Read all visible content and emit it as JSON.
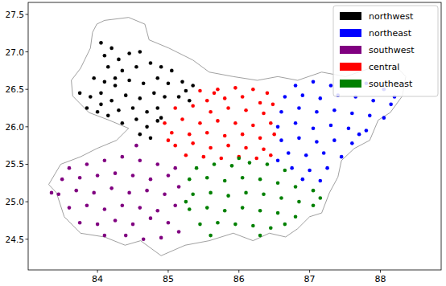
{
  "chart_data": {
    "type": "scatter",
    "xlim": [
      83.02,
      88.86
    ],
    "ylim": [
      24.09,
      27.66
    ],
    "xticks": [
      84,
      85,
      86,
      87,
      88
    ],
    "yticks": [
      24.5,
      {
        "value": 25,
        "label": "25.0"
      },
      25.5,
      {
        "value": 26,
        "label": "26.0"
      },
      26.5,
      {
        "value": 27,
        "label": "27.0"
      },
      27.5
    ],
    "legend": "upper right",
    "marker": "circle",
    "outline": {
      "x": [
        83.99,
        84.1,
        84.44,
        84.67,
        84.73,
        85.01,
        85.35,
        85.58,
        85.92,
        86.26,
        86.55,
        86.83,
        87.17,
        87.51,
        87.85,
        88.19,
        88.36,
        88.31,
        88.14,
        87.97,
        87.85,
        87.63,
        87.45,
        87.4,
        87.28,
        87.17,
        87.0,
        86.83,
        86.66,
        86.43,
        86.2,
        85.92,
        85.58,
        85.24,
        84.9,
        84.61,
        84.39,
        84.1,
        83.76,
        83.53,
        83.42,
        83.31,
        83.48,
        83.76,
        83.99,
        84.27,
        84.44,
        84.16,
        83.88,
        83.65,
        83.63,
        83.76,
        83.9,
        83.93
      ],
      "y": [
        27.37,
        27.42,
        27.46,
        27.37,
        27.16,
        27.05,
        26.89,
        26.73,
        26.67,
        26.62,
        26.67,
        26.62,
        26.73,
        26.67,
        26.78,
        26.84,
        26.67,
        26.41,
        26.19,
        26.09,
        25.82,
        25.71,
        25.55,
        25.33,
        25.12,
        24.85,
        24.8,
        24.64,
        24.53,
        24.58,
        24.48,
        24.58,
        24.48,
        24.42,
        24.28,
        24.48,
        24.42,
        24.53,
        24.58,
        24.8,
        25.12,
        25.23,
        25.5,
        25.6,
        25.71,
        25.82,
        25.98,
        26.09,
        26.19,
        26.41,
        26.62,
        26.78,
        27.05,
        27.26
      ]
    },
    "series": [
      {
        "name": "northwest",
        "color": "#000000",
        "x": [
          84.05,
          84.2,
          84.1,
          84.3,
          84.45,
          84.6,
          84.15,
          84.35,
          84.55,
          84.75,
          84.9,
          85.05,
          83.95,
          84.1,
          84.25,
          84.45,
          84.65,
          84.85,
          85.0,
          85.2,
          85.35,
          83.75,
          83.9,
          84.05,
          84.2,
          84.4,
          84.6,
          84.8,
          84.95,
          85.15,
          85.3,
          83.85,
          84.0,
          84.15,
          84.3,
          84.5,
          84.7,
          84.85,
          84.35,
          84.55,
          84.7,
          84.85,
          84.6,
          84.75,
          84.9,
          84.25,
          84.05,
          85.25
        ],
        "y": [
          27.12,
          27.05,
          26.95,
          26.9,
          26.98,
          27.0,
          26.8,
          26.75,
          26.8,
          26.85,
          26.8,
          26.75,
          26.65,
          26.6,
          26.55,
          26.62,
          26.58,
          26.65,
          26.58,
          26.6,
          26.55,
          26.45,
          26.4,
          26.45,
          26.35,
          26.42,
          26.38,
          26.45,
          26.4,
          26.4,
          26.35,
          26.25,
          26.2,
          26.15,
          26.22,
          26.25,
          26.2,
          26.25,
          26.05,
          26.1,
          26.0,
          26.08,
          25.9,
          25.85,
          26.12,
          26.65,
          26.3,
          26.48
        ]
      },
      {
        "name": "northeast",
        "color": "#0000ff",
        "x": [
          86.8,
          87.05,
          87.3,
          87.55,
          87.8,
          88.05,
          86.65,
          86.9,
          87.15,
          87.4,
          87.65,
          87.9,
          88.15,
          86.6,
          86.85,
          87.1,
          87.35,
          87.6,
          87.85,
          88.05,
          86.55,
          86.8,
          87.05,
          87.3,
          87.55,
          87.8,
          86.6,
          86.85,
          87.1,
          87.35,
          87.6,
          86.7,
          86.95,
          87.2,
          87.45,
          86.75,
          87.0,
          87.25,
          86.9,
          87.15,
          88.2,
          87.7,
          86.55
        ],
        "y": [
          26.55,
          26.6,
          26.55,
          26.6,
          26.58,
          26.5,
          26.4,
          26.42,
          26.38,
          26.42,
          26.4,
          26.35,
          26.3,
          26.2,
          26.25,
          26.2,
          26.22,
          26.18,
          26.15,
          26.12,
          26.0,
          26.05,
          25.98,
          26.02,
          25.98,
          25.95,
          25.82,
          25.85,
          25.8,
          25.82,
          25.78,
          25.65,
          25.62,
          25.65,
          25.6,
          25.45,
          25.42,
          25.45,
          25.3,
          25.28,
          26.4,
          25.9,
          25.55
        ]
      },
      {
        "name": "southwest",
        "color": "#800080",
        "x": [
          83.6,
          83.85,
          84.1,
          84.35,
          84.6,
          84.85,
          83.5,
          83.75,
          84.0,
          84.25,
          84.5,
          84.75,
          85.0,
          83.45,
          83.7,
          83.95,
          84.2,
          84.45,
          84.7,
          84.95,
          85.15,
          83.6,
          83.85,
          84.1,
          84.35,
          84.6,
          84.85,
          85.1,
          83.75,
          84.0,
          84.25,
          84.5,
          84.75,
          85.0,
          84.1,
          84.4,
          84.65,
          84.9,
          85.15,
          85.1,
          83.35,
          84.55
        ],
        "y": [
          25.45,
          25.5,
          25.55,
          25.6,
          25.55,
          25.5,
          25.3,
          25.32,
          25.35,
          25.38,
          25.35,
          25.3,
          25.35,
          25.1,
          25.15,
          25.12,
          25.18,
          25.12,
          25.15,
          25.1,
          25.2,
          24.92,
          24.95,
          24.9,
          24.95,
          24.92,
          24.88,
          24.95,
          24.72,
          24.7,
          24.75,
          24.7,
          24.78,
          24.72,
          24.55,
          24.55,
          24.5,
          24.52,
          24.6,
          25.45,
          25.12,
          25.75
        ]
      },
      {
        "name": "central",
        "color": "#ff0000",
        "x": [
          85.45,
          85.7,
          85.95,
          86.2,
          86.4,
          85.55,
          85.8,
          86.05,
          86.3,
          85.1,
          85.35,
          85.6,
          85.85,
          86.1,
          86.35,
          84.95,
          85.2,
          85.45,
          85.7,
          85.95,
          86.2,
          86.45,
          85.05,
          85.3,
          85.55,
          85.8,
          86.05,
          86.3,
          85.1,
          85.35,
          85.6,
          85.85,
          86.1,
          86.35,
          85.25,
          85.5,
          85.75,
          86.0,
          86.25,
          86.45,
          85.0,
          86.5,
          85.65,
          86.48
        ],
        "y": [
          26.48,
          26.5,
          26.52,
          26.5,
          26.45,
          26.35,
          26.38,
          26.4,
          26.32,
          26.25,
          26.28,
          26.2,
          26.25,
          26.22,
          26.18,
          26.05,
          26.1,
          26.05,
          26.08,
          26.05,
          26.02,
          26.05,
          25.92,
          25.9,
          25.92,
          25.88,
          25.9,
          25.85,
          25.75,
          25.78,
          25.72,
          25.75,
          25.72,
          25.7,
          25.62,
          25.6,
          25.58,
          25.6,
          25.58,
          25.62,
          25.82,
          25.9,
          26.45,
          26.3
        ]
      },
      {
        "name": "southeast",
        "color": "#008000",
        "x": [
          85.4,
          85.65,
          85.9,
          86.15,
          86.4,
          86.65,
          85.3,
          85.55,
          85.8,
          86.05,
          86.3,
          86.55,
          86.8,
          87.05,
          85.35,
          85.6,
          85.85,
          86.1,
          86.35,
          86.6,
          86.85,
          87.05,
          85.3,
          85.55,
          85.8,
          86.05,
          86.3,
          86.55,
          86.8,
          85.45,
          85.7,
          85.95,
          86.2,
          86.45,
          86.65,
          85.6,
          86.3,
          85.25,
          87.15,
          86.0
        ],
        "y": [
          25.45,
          25.5,
          25.48,
          25.52,
          25.5,
          25.42,
          25.3,
          25.32,
          25.28,
          25.32,
          25.3,
          25.25,
          25.2,
          25.15,
          25.1,
          25.12,
          25.08,
          25.12,
          25.1,
          25.05,
          25.0,
          24.95,
          24.9,
          24.92,
          24.88,
          24.92,
          24.88,
          24.85,
          24.8,
          24.7,
          24.72,
          24.7,
          24.68,
          24.65,
          24.7,
          24.55,
          24.55,
          25.0,
          25.05,
          25.58
        ]
      }
    ]
  }
}
